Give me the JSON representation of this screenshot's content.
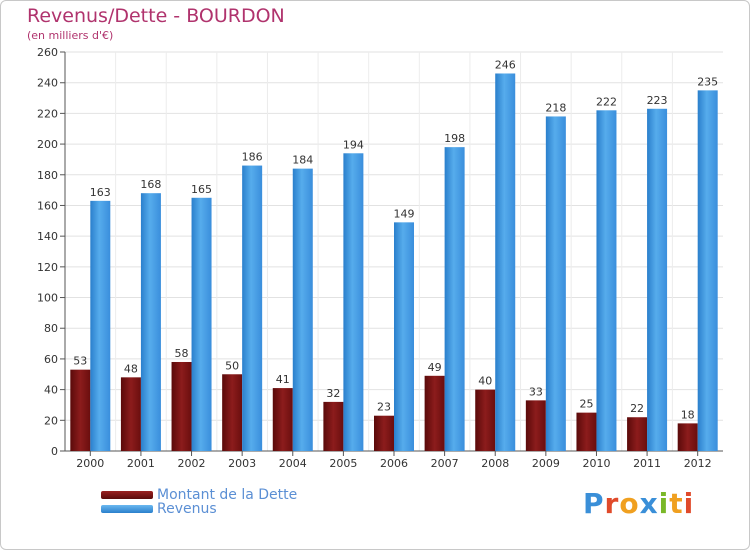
{
  "chart_data": {
    "type": "bar",
    "title": "Revenus/Dette - BOURDON",
    "subtitle": "(en milliers d'€)",
    "categories": [
      "2000",
      "2001",
      "2002",
      "2003",
      "2004",
      "2005",
      "2006",
      "2007",
      "2008",
      "2009",
      "2010",
      "2011",
      "2012"
    ],
    "series": [
      {
        "name": "Montant de la Dette",
        "color": "#7a1414",
        "values": [
          53,
          48,
          58,
          50,
          41,
          32,
          23,
          49,
          40,
          33,
          25,
          22,
          18
        ]
      },
      {
        "name": "Revenus",
        "color": "#3a94de",
        "values": [
          163,
          168,
          165,
          186,
          184,
          194,
          149,
          198,
          246,
          218,
          222,
          223,
          235
        ]
      }
    ],
    "ylim": [
      0,
      260
    ],
    "yticks": [
      0,
      20,
      40,
      60,
      80,
      100,
      120,
      140,
      160,
      180,
      200,
      220,
      240,
      260
    ],
    "grid": true,
    "legend_position": "bottom-left"
  },
  "logo": {
    "letters": [
      {
        "char": "P",
        "color": "#3a8fd8"
      },
      {
        "char": "r",
        "color": "#e04a2a"
      },
      {
        "char": "o",
        "color": "#f0a020"
      },
      {
        "char": "x",
        "color": "#3a8fd8"
      },
      {
        "char": "i",
        "color": "#7ab828"
      },
      {
        "char": "t",
        "color": "#f0a020"
      },
      {
        "char": "i",
        "color": "#e04a2a"
      }
    ]
  }
}
